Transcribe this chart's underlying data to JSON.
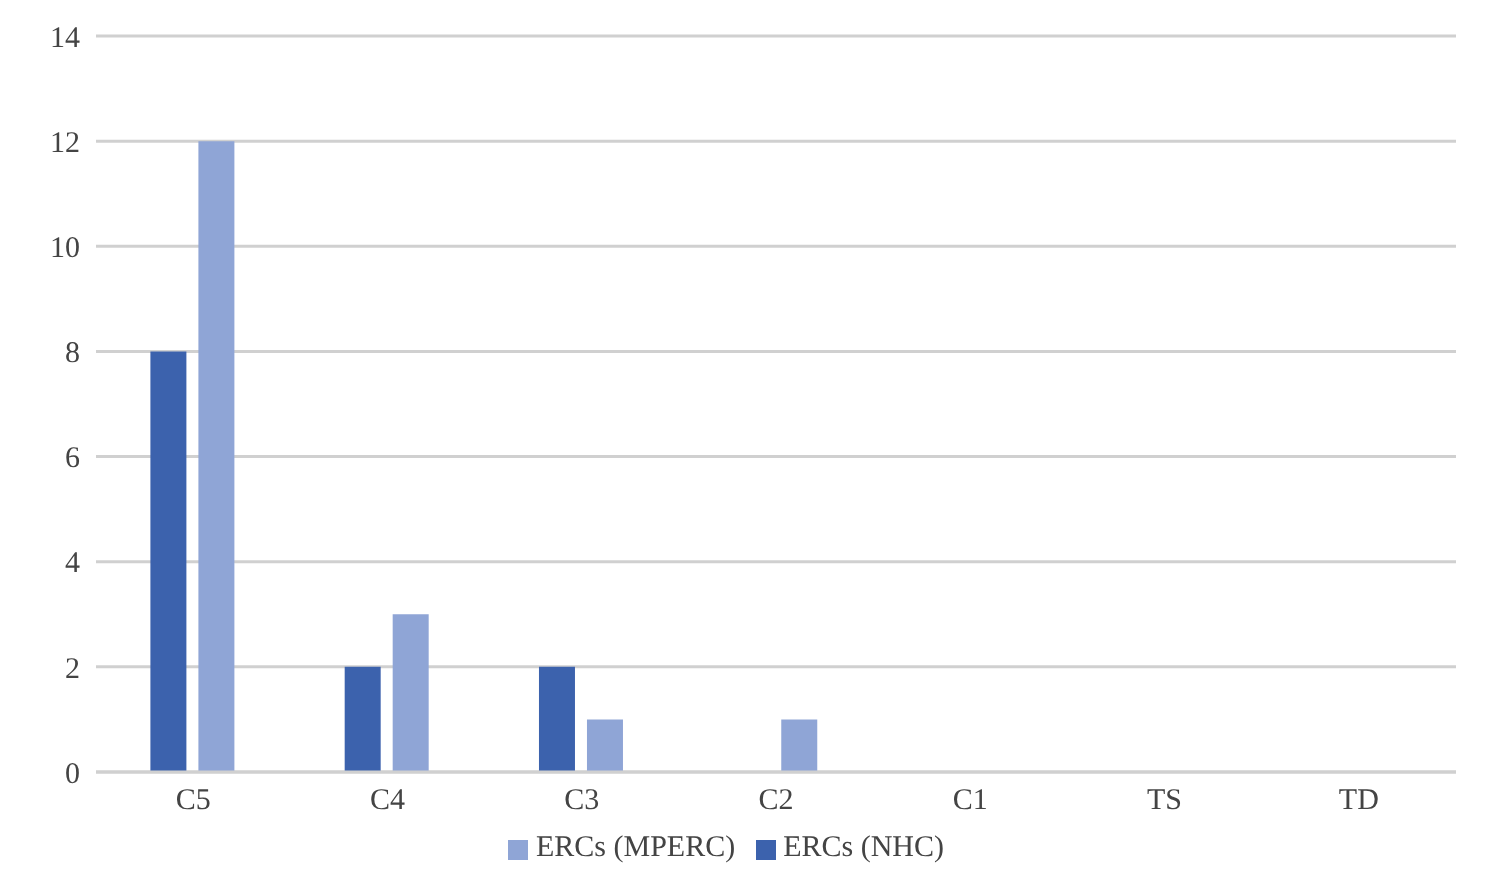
{
  "chart_data": {
    "type": "bar",
    "categories": [
      "C5",
      "C4",
      "C3",
      "C2",
      "C1",
      "TS",
      "TD"
    ],
    "series": [
      {
        "name": "ERCs (NHC)",
        "color": "#3c62ad",
        "values": [
          8,
          2,
          2,
          0,
          0,
          0,
          0
        ]
      },
      {
        "name": "ERCs (MPERC)",
        "color": "#8fa5d6",
        "values": [
          12,
          3,
          1,
          1,
          0,
          0,
          0
        ]
      }
    ],
    "ylim": [
      0,
      14
    ],
    "yticks": [
      0,
      2,
      4,
      6,
      8,
      10,
      12,
      14
    ],
    "grid": "y",
    "legend": "bottom"
  }
}
